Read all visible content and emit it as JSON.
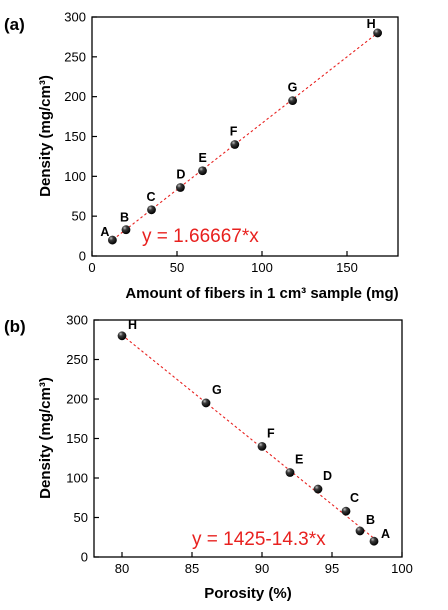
{
  "chart_data": [
    {
      "type": "scatter",
      "panel_label": "(a)",
      "xlabel": "Amount of fibers in 1 cm³ sample (mg)",
      "ylabel": "Density (mg/cm³)",
      "xlim": [
        0,
        180
      ],
      "ylim": [
        0,
        300
      ],
      "xticks": [
        0,
        50,
        100,
        150
      ],
      "yticks": [
        0,
        50,
        100,
        150,
        200,
        250,
        300
      ],
      "grid": false,
      "series": [
        {
          "points": [
            {
              "label": "A",
              "x": 12,
              "y": 20
            },
            {
              "label": "B",
              "x": 20,
              "y": 33
            },
            {
              "label": "C",
              "x": 35,
              "y": 58
            },
            {
              "label": "D",
              "x": 52,
              "y": 86
            },
            {
              "label": "E",
              "x": 65,
              "y": 107
            },
            {
              "label": "F",
              "x": 84,
              "y": 140
            },
            {
              "label": "G",
              "x": 118,
              "y": 195
            },
            {
              "label": "H",
              "x": 168,
              "y": 280
            }
          ]
        }
      ],
      "fit": {
        "equation": "y = 1.66667*x",
        "x_range": [
          10,
          170
        ],
        "slope": 1.66667,
        "intercept": 0,
        "color": "#e8211f"
      },
      "marker_color": "#111111"
    },
    {
      "type": "scatter",
      "panel_label": "(b)",
      "xlabel": "Porosity (%)",
      "ylabel": "Density (mg/cm³)",
      "xlim": [
        78,
        100
      ],
      "ylim": [
        0,
        300
      ],
      "xticks": [
        80,
        85,
        90,
        95,
        100
      ],
      "yticks": [
        0,
        50,
        100,
        150,
        200,
        250,
        300
      ],
      "grid": false,
      "series": [
        {
          "points": [
            {
              "label": "A",
              "x": 98,
              "y": 20
            },
            {
              "label": "B",
              "x": 97,
              "y": 33
            },
            {
              "label": "C",
              "x": 96,
              "y": 58
            },
            {
              "label": "D",
              "x": 94,
              "y": 86
            },
            {
              "label": "E",
              "x": 92,
              "y": 107
            },
            {
              "label": "F",
              "x": 90,
              "y": 140
            },
            {
              "label": "G",
              "x": 86,
              "y": 195
            },
            {
              "label": "H",
              "x": 80,
              "y": 280
            }
          ]
        }
      ],
      "fit": {
        "equation": "y = 1425-14.3*x",
        "x_range": [
          80,
          98.3
        ],
        "slope": -14.3,
        "intercept": 1425,
        "color": "#e8211f"
      },
      "marker_color": "#111111"
    }
  ]
}
